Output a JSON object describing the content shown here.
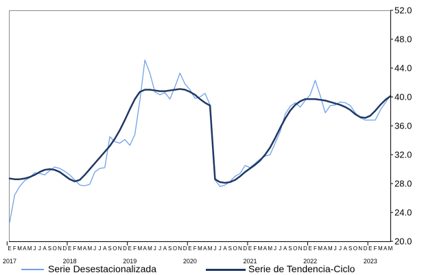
{
  "chart_data": {
    "type": "line",
    "title": "",
    "xlabel": "",
    "ylabel": "",
    "ylim": [
      20.0,
      52.0
    ],
    "y_ticks": [
      "20.0",
      "24.0",
      "28.0",
      "32.0",
      "36.0",
      "40.0",
      "44.0",
      "48.0",
      "52.0"
    ],
    "y_axis_position": "right",
    "grid": false,
    "legend_position": "bottom",
    "month_labels": [
      "E",
      "F",
      "M",
      "A",
      "M",
      "J",
      "J",
      "A",
      "S",
      "O",
      "N",
      "D"
    ],
    "year_labels": [
      "2017",
      "2018",
      "2019",
      "2020",
      "2021",
      "2022",
      "2023"
    ],
    "x_start": "2017-01",
    "series": [
      {
        "name": "Serie Desestacionalizada",
        "color": "#6fa0e8",
        "values": [
          22.6,
          26.4,
          27.6,
          28.4,
          28.8,
          29.5,
          29.4,
          29.2,
          29.8,
          30.3,
          30.1,
          29.7,
          29.2,
          28.5,
          27.8,
          27.7,
          27.9,
          29.6,
          30.1,
          30.2,
          34.5,
          33.8,
          33.6,
          34.1,
          33.3,
          34.8,
          39.5,
          45.1,
          43.3,
          40.7,
          40.3,
          40.6,
          39.7,
          41.4,
          43.3,
          41.8,
          41.0,
          39.8,
          40.0,
          40.5,
          38.9,
          28.5,
          27.6,
          27.8,
          28.3,
          29.0,
          29.4,
          30.5,
          30.2,
          30.8,
          31.4,
          31.8,
          32.0,
          33.6,
          35.2,
          37.6,
          38.7,
          39.2,
          38.6,
          39.5,
          40.3,
          42.3,
          40.2,
          37.8,
          38.8,
          38.9,
          39.3,
          39.2,
          38.8,
          37.8,
          37.1,
          36.8,
          36.8,
          36.8,
          38.2,
          39.2,
          40.2
        ],
        "line_width": 1.3
      },
      {
        "name": "Serie de Tendencia-Ciclo",
        "color": "#1f3864",
        "values": [
          28.7,
          28.6,
          28.6,
          28.7,
          28.9,
          29.2,
          29.6,
          29.9,
          30.0,
          29.9,
          29.6,
          29.1,
          28.6,
          28.3,
          28.5,
          29.2,
          30.0,
          30.8,
          31.6,
          32.4,
          33.2,
          34.2,
          35.4,
          36.8,
          38.3,
          39.7,
          40.7,
          41.0,
          41.0,
          40.9,
          40.8,
          40.8,
          40.9,
          41.0,
          41.1,
          41.0,
          40.7,
          40.3,
          39.7,
          39.2,
          38.8,
          28.6,
          28.2,
          28.1,
          28.2,
          28.5,
          29.0,
          29.6,
          30.1,
          30.6,
          31.2,
          32.0,
          33.0,
          34.3,
          35.7,
          37.0,
          38.1,
          38.9,
          39.4,
          39.7,
          39.7,
          39.7,
          39.6,
          39.5,
          39.3,
          39.1,
          38.9,
          38.6,
          38.2,
          37.6,
          37.2,
          37.1,
          37.4,
          38.1,
          38.9,
          39.6,
          40.1
        ],
        "line_width": 2.5
      }
    ]
  }
}
